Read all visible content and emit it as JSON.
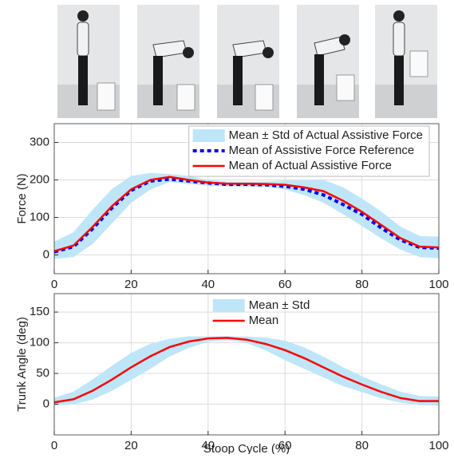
{
  "chart_data": [
    {
      "type": "line",
      "ylabel": "Force (N)",
      "x": [
        0,
        5,
        10,
        15,
        20,
        25,
        30,
        35,
        40,
        45,
        50,
        55,
        60,
        65,
        70,
        75,
        80,
        85,
        90,
        95,
        100
      ],
      "xlim": [
        0,
        100
      ],
      "xticks": [
        0,
        20,
        40,
        60,
        80,
        100
      ],
      "ylim": [
        -50,
        350
      ],
      "yticks": [
        0,
        100,
        200,
        300
      ],
      "grid": true,
      "legend": "north-east",
      "legend_frame": true,
      "series": [
        {
          "name": "Mean ± Std of Actual Assistive Force",
          "color": "#bfe6f8",
          "style": "band",
          "upper": [
            35,
            60,
            120,
            175,
            210,
            218,
            215,
            210,
            200,
            195,
            195,
            195,
            198,
            198,
            200,
            180,
            150,
            115,
            75,
            50,
            48
          ],
          "lower": [
            -10,
            -5,
            30,
            85,
            140,
            175,
            195,
            190,
            185,
            183,
            183,
            182,
            175,
            160,
            140,
            110,
            78,
            45,
            15,
            -5,
            -8
          ]
        },
        {
          "name": "Mean of Assistive Force Reference",
          "color": "#0000ff",
          "style": "dashed",
          "values": [
            8,
            22,
            70,
            125,
            172,
            197,
            202,
            197,
            192,
            188,
            188,
            187,
            183,
            175,
            160,
            135,
            108,
            72,
            40,
            20,
            18
          ]
        },
        {
          "name": "Mean of Actual Assistive Force",
          "color": "#ff0000",
          "style": "solid",
          "values": [
            10,
            25,
            75,
            130,
            175,
            200,
            208,
            200,
            193,
            190,
            190,
            189,
            187,
            180,
            170,
            145,
            115,
            80,
            45,
            22,
            20
          ]
        }
      ]
    },
    {
      "type": "line",
      "ylabel": "Trunk Angle (deg)",
      "xlabel": "Stoop Cycle (%)",
      "x": [
        0,
        5,
        10,
        15,
        20,
        25,
        30,
        35,
        40,
        45,
        50,
        55,
        60,
        65,
        70,
        75,
        80,
        85,
        90,
        95,
        100
      ],
      "xlim": [
        0,
        100
      ],
      "xticks": [
        0,
        20,
        40,
        60,
        80,
        100
      ],
      "ylim": [
        -50,
        180
      ],
      "yticks": [
        0,
        50,
        100,
        150
      ],
      "grid": true,
      "legend": "north",
      "legend_frame": false,
      "series": [
        {
          "name": "Mean ± Std",
          "color": "#bfe6f8",
          "style": "band",
          "upper": [
            10,
            20,
            40,
            62,
            83,
            98,
            106,
            110,
            110,
            110,
            110,
            108,
            103,
            92,
            77,
            60,
            45,
            32,
            20,
            13,
            12
          ],
          "lower": [
            -2,
            0,
            8,
            22,
            40,
            58,
            78,
            92,
            102,
            105,
            100,
            88,
            72,
            58,
            44,
            30,
            20,
            10,
            3,
            -1,
            -2
          ]
        },
        {
          "name": "Mean",
          "color": "#ff0000",
          "style": "solid",
          "values": [
            3,
            8,
            22,
            40,
            60,
            78,
            93,
            102,
            107,
            108,
            105,
            98,
            88,
            75,
            60,
            45,
            32,
            20,
            10,
            5,
            5
          ]
        }
      ]
    }
  ]
}
